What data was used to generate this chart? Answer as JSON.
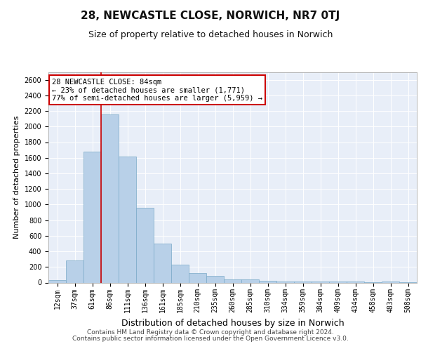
{
  "title": "28, NEWCASTLE CLOSE, NORWICH, NR7 0TJ",
  "subtitle": "Size of property relative to detached houses in Norwich",
  "xlabel": "Distribution of detached houses by size in Norwich",
  "ylabel": "Number of detached properties",
  "categories": [
    "12sqm",
    "37sqm",
    "61sqm",
    "86sqm",
    "111sqm",
    "136sqm",
    "161sqm",
    "185sqm",
    "210sqm",
    "235sqm",
    "260sqm",
    "285sqm",
    "310sqm",
    "334sqm",
    "359sqm",
    "384sqm",
    "409sqm",
    "434sqm",
    "458sqm",
    "483sqm",
    "508sqm"
  ],
  "values": [
    30,
    280,
    1680,
    2160,
    1620,
    960,
    500,
    230,
    120,
    90,
    40,
    40,
    20,
    15,
    10,
    10,
    15,
    10,
    5,
    10,
    5
  ],
  "bar_color": "#b8d0e8",
  "bar_edge_color": "#7aaac8",
  "highlight_line_color": "#cc0000",
  "annotation_line1": "28 NEWCASTLE CLOSE: 84sqm",
  "annotation_line2": "← 23% of detached houses are smaller (1,771)",
  "annotation_line3": "77% of semi-detached houses are larger (5,959) →",
  "annotation_box_color": "#ffffff",
  "annotation_box_edge_color": "#cc0000",
  "property_line_x": 2.5,
  "ylim": [
    0,
    2700
  ],
  "yticks": [
    0,
    200,
    400,
    600,
    800,
    1000,
    1200,
    1400,
    1600,
    1800,
    2000,
    2200,
    2400,
    2600
  ],
  "background_color": "#e8eef8",
  "grid_color": "#ffffff",
  "footer_line1": "Contains HM Land Registry data © Crown copyright and database right 2024.",
  "footer_line2": "Contains public sector information licensed under the Open Government Licence v3.0.",
  "title_fontsize": 11,
  "subtitle_fontsize": 9,
  "xlabel_fontsize": 9,
  "ylabel_fontsize": 8,
  "tick_fontsize": 7,
  "annotation_fontsize": 7.5,
  "footer_fontsize": 6.5
}
